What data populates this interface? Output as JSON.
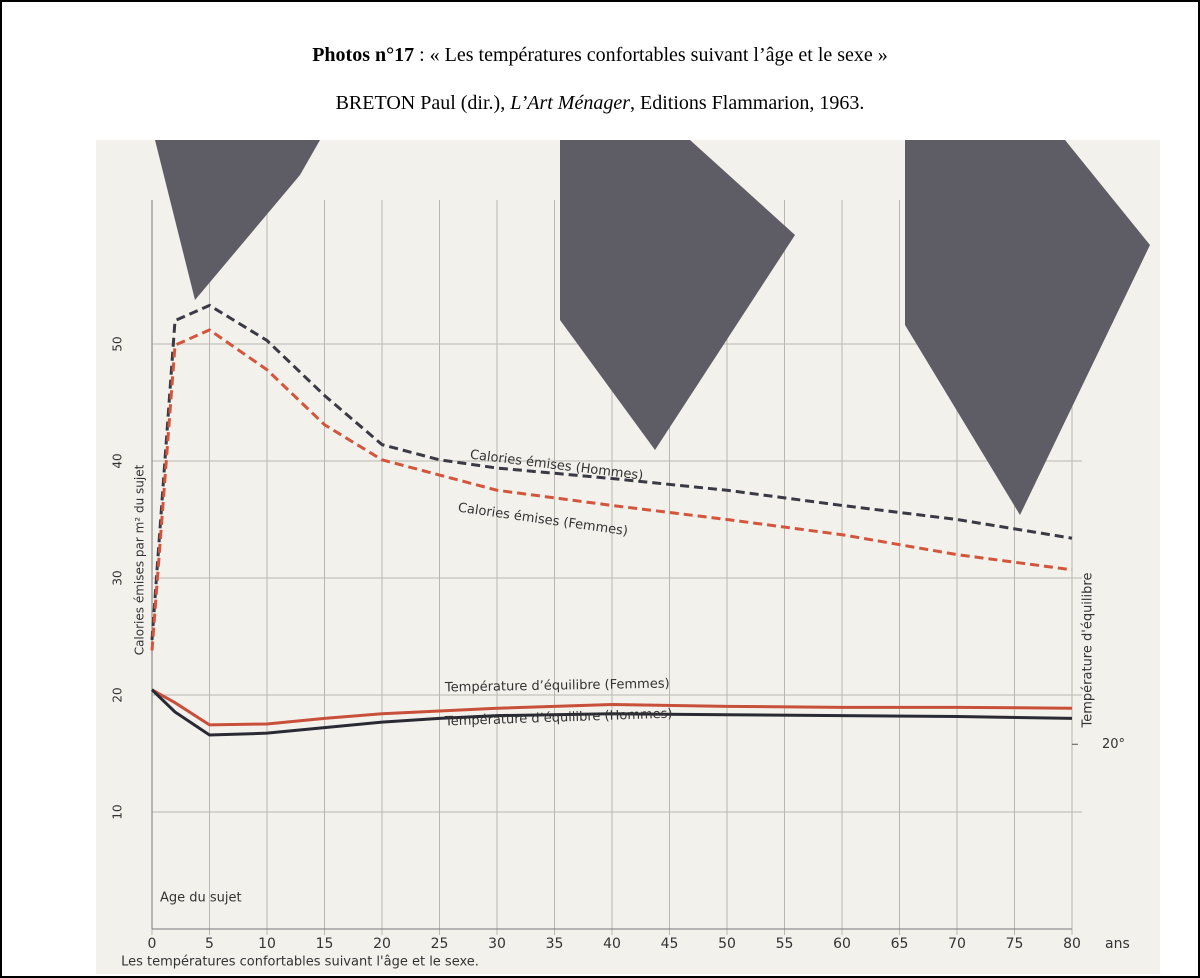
{
  "header": {
    "label": "Photos n°17",
    "title": " : « Les températures confortables suivant l’âge et le sexe »",
    "source_pre": "BRETON Paul (dir.), ",
    "source_title": "L’Art Ménager",
    "source_post": ", Editions Flammarion, 1963."
  },
  "chart_data": {
    "type": "line",
    "ylabel": "Calories émises par m² du sujet",
    "y2label": "Température d'équilibre",
    "xlabel": "Les températures confortables suivant l'âge et le sexe.",
    "xunit": "ans",
    "corner_label": "Age du sujet",
    "x": [
      0,
      2,
      5,
      10,
      15,
      20,
      25,
      30,
      40,
      50,
      60,
      70,
      80
    ],
    "xlim": [
      0,
      80
    ],
    "xticks": [
      0,
      5,
      10,
      15,
      20,
      25,
      30,
      35,
      40,
      45,
      50,
      55,
      60,
      65,
      70,
      75,
      80
    ],
    "ylim": [
      0,
      60
    ],
    "yticks": [
      10,
      20,
      30,
      40,
      50
    ],
    "y2lim": [
      0,
      76
    ],
    "y2ticks": [
      {
        "value": 20,
        "label": "20°"
      }
    ],
    "grid": true,
    "series": [
      {
        "name": "Calories émises (Hommes)",
        "color": "#3a3a44",
        "line_style": "dashed",
        "values": [
          24.7,
          52,
          53.3,
          50.3,
          45.6,
          41.4,
          40.1,
          39.4,
          38.5,
          37.5,
          36.2,
          35.0,
          33.4
        ]
      },
      {
        "name": "Calories émises (Femmes)",
        "color": "#d4553c",
        "line_style": "dashed",
        "values": [
          23.8,
          49.9,
          51.2,
          47.8,
          43.1,
          40.1,
          38.8,
          37.5,
          36.2,
          35.0,
          33.7,
          32.0,
          30.7
        ]
      },
      {
        "name": "Température d’équilibre (Femmes)",
        "color": "#c8503a",
        "line_style": "solid",
        "axis": "y2",
        "values": [
          25.9,
          24.5,
          22.1,
          22.2,
          22.8,
          23.3,
          23.6,
          23.9,
          24.3,
          24.1,
          24.0,
          24.0,
          23.9
        ]
      },
      {
        "name": "Température d’équilibre (Hommes)",
        "color": "#2a2a35",
        "line_style": "solid",
        "axis": "y2",
        "values": [
          25.9,
          23.5,
          21.0,
          21.2,
          21.8,
          22.4,
          22.8,
          23.1,
          23.3,
          23.2,
          23.1,
          23.0,
          22.8
        ]
      }
    ]
  }
}
